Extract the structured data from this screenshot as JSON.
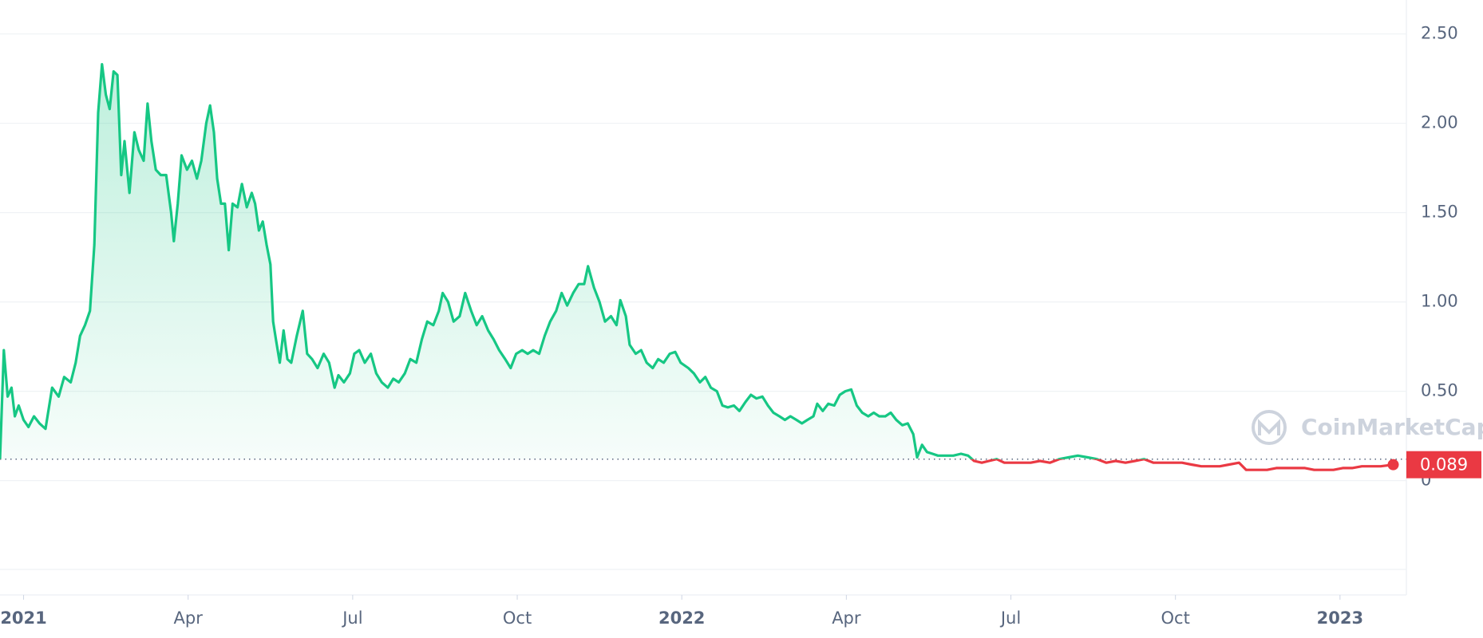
{
  "chart_data": {
    "type": "line",
    "xlim": [
      -0.43,
      25.21
    ],
    "xticks": [
      {
        "value": 0,
        "label": "2021"
      },
      {
        "value": 3,
        "label": "Apr"
      },
      {
        "value": 6,
        "label": "Jul"
      },
      {
        "value": 9,
        "label": "Oct"
      },
      {
        "value": 12,
        "label": "2022"
      },
      {
        "value": 15,
        "label": "Apr"
      },
      {
        "value": 18,
        "label": "Jul"
      },
      {
        "value": 21,
        "label": "Oct"
      },
      {
        "value": 24,
        "label": "2023"
      }
    ],
    "ylim": [
      -0.64,
      2.69
    ],
    "yticks": [
      0,
      {
        "value": 0.5,
        "label": "0.50"
      },
      {
        "value": 1,
        "label": "1.00"
      },
      {
        "value": 1.5,
        "label": "1.50"
      },
      {
        "value": 2,
        "label": "2.00"
      },
      {
        "value": 2.5,
        "label": "2.50"
      }
    ],
    "grid": true,
    "baseline": 0.12,
    "color_above": "#16c784",
    "color_below": "#ea3943",
    "current_price_label": "0.089",
    "watermark": "CoinMarketCap",
    "x": [
      -0.43,
      -0.36,
      -0.29,
      -0.22,
      -0.16,
      -0.09,
      0,
      0.09,
      0.19,
      0.29,
      0.4,
      0.52,
      0.64,
      0.74,
      0.86,
      0.95,
      1.03,
      1.12,
      1.21,
      1.29,
      1.36,
      1.43,
      1.5,
      1.57,
      1.64,
      1.71,
      1.78,
      1.84,
      1.93,
      2.02,
      2.1,
      2.19,
      2.26,
      2.33,
      2.41,
      2.5,
      2.6,
      2.69,
      2.74,
      2.81,
      2.88,
      2.98,
      3.07,
      3.16,
      3.24,
      3.33,
      3.4,
      3.47,
      3.53,
      3.6,
      3.67,
      3.74,
      3.81,
      3.9,
      3.98,
      4.07,
      4.16,
      4.22,
      4.29,
      4.36,
      4.43,
      4.5,
      4.55,
      4.6,
      4.67,
      4.74,
      4.81,
      4.88,
      4.98,
      5.09,
      5.17,
      5.26,
      5.36,
      5.47,
      5.57,
      5.67,
      5.74,
      5.84,
      5.95,
      6.03,
      6.12,
      6.22,
      6.33,
      6.43,
      6.53,
      6.64,
      6.74,
      6.84,
      6.95,
      7.05,
      7.16,
      7.26,
      7.36,
      7.47,
      7.57,
      7.64,
      7.74,
      7.84,
      7.95,
      8.05,
      8.16,
      8.26,
      8.36,
      8.47,
      8.57,
      8.67,
      8.78,
      8.88,
      8.98,
      9.09,
      9.19,
      9.29,
      9.4,
      9.5,
      9.6,
      9.71,
      9.81,
      9.91,
      10.02,
      10.12,
      10.22,
      10.29,
      10.4,
      10.5,
      10.6,
      10.71,
      10.81,
      10.88,
      10.98,
      11.05,
      11.16,
      11.26,
      11.36,
      11.47,
      11.57,
      11.67,
      11.78,
      11.88,
      11.98,
      12.12,
      12.22,
      12.33,
      12.43,
      12.53,
      12.64,
      12.74,
      12.84,
      12.95,
      13.05,
      13.16,
      13.26,
      13.36,
      13.47,
      13.57,
      13.67,
      13.78,
      13.88,
      13.98,
      14.09,
      14.19,
      14.29,
      14.4,
      14.47,
      14.57,
      14.67,
      14.78,
      14.88,
      14.98,
      15.09,
      15.19,
      15.29,
      15.4,
      15.5,
      15.6,
      15.71,
      15.81,
      15.91,
      16.02,
      16.12,
      16.22,
      16.29,
      16.38,
      16.47,
      16.57,
      16.67,
      16.81,
      16.95,
      17.09,
      17.22,
      17.33,
      17.47,
      17.6,
      17.74,
      17.88,
      18.02,
      18.19,
      18.36,
      18.53,
      18.71,
      18.88,
      19.05,
      19.22,
      19.4,
      19.57,
      19.74,
      19.91,
      20.09,
      20.26,
      20.43,
      20.6,
      20.78,
      20.95,
      21.12,
      21.29,
      21.47,
      21.64,
      21.81,
      21.98,
      22.16,
      22.29,
      22.47,
      22.67,
      22.84,
      23.02,
      23.19,
      23.36,
      23.53,
      23.71,
      23.88,
      24.05,
      24.22,
      24.4,
      24.57,
      24.74,
      24.97
    ],
    "values": [
      0.12,
      0.73,
      0.47,
      0.52,
      0.36,
      0.42,
      0.34,
      0.3,
      0.36,
      0.32,
      0.29,
      0.52,
      0.47,
      0.58,
      0.55,
      0.66,
      0.81,
      0.87,
      0.95,
      1.32,
      2.06,
      2.33,
      2.16,
      2.08,
      2.29,
      2.27,
      1.71,
      1.9,
      1.61,
      1.95,
      1.85,
      1.79,
      2.11,
      1.9,
      1.74,
      1.71,
      1.71,
      1.5,
      1.34,
      1.55,
      1.82,
      1.74,
      1.79,
      1.69,
      1.79,
      2.0,
      2.1,
      1.95,
      1.69,
      1.55,
      1.55,
      1.29,
      1.55,
      1.53,
      1.66,
      1.53,
      1.61,
      1.55,
      1.4,
      1.45,
      1.32,
      1.21,
      0.89,
      0.79,
      0.66,
      0.84,
      0.68,
      0.66,
      0.81,
      0.95,
      0.71,
      0.68,
      0.63,
      0.71,
      0.66,
      0.52,
      0.59,
      0.55,
      0.6,
      0.71,
      0.73,
      0.66,
      0.71,
      0.6,
      0.55,
      0.52,
      0.57,
      0.55,
      0.6,
      0.68,
      0.66,
      0.79,
      0.89,
      0.87,
      0.95,
      1.05,
      1.0,
      0.89,
      0.92,
      1.05,
      0.95,
      0.87,
      0.92,
      0.84,
      0.79,
      0.73,
      0.68,
      0.63,
      0.71,
      0.73,
      0.71,
      0.73,
      0.71,
      0.81,
      0.89,
      0.95,
      1.05,
      0.98,
      1.05,
      1.1,
      1.1,
      1.2,
      1.08,
      1.0,
      0.89,
      0.92,
      0.87,
      1.01,
      0.92,
      0.76,
      0.71,
      0.73,
      0.66,
      0.63,
      0.68,
      0.66,
      0.71,
      0.72,
      0.66,
      0.63,
      0.6,
      0.55,
      0.58,
      0.52,
      0.5,
      0.42,
      0.41,
      0.42,
      0.39,
      0.44,
      0.48,
      0.46,
      0.47,
      0.42,
      0.38,
      0.36,
      0.34,
      0.36,
      0.34,
      0.32,
      0.34,
      0.36,
      0.43,
      0.39,
      0.43,
      0.42,
      0.48,
      0.5,
      0.51,
      0.42,
      0.38,
      0.36,
      0.38,
      0.36,
      0.36,
      0.38,
      0.34,
      0.31,
      0.32,
      0.26,
      0.13,
      0.2,
      0.16,
      0.15,
      0.14,
      0.14,
      0.14,
      0.15,
      0.14,
      0.11,
      0.1,
      0.11,
      0.12,
      0.1,
      0.1,
      0.1,
      0.1,
      0.11,
      0.1,
      0.12,
      0.13,
      0.14,
      0.13,
      0.12,
      0.1,
      0.11,
      0.1,
      0.11,
      0.12,
      0.1,
      0.1,
      0.1,
      0.1,
      0.09,
      0.08,
      0.08,
      0.08,
      0.09,
      0.1,
      0.06,
      0.06,
      0.06,
      0.07,
      0.07,
      0.07,
      0.07,
      0.06,
      0.06,
      0.06,
      0.07,
      0.07,
      0.08,
      0.08,
      0.08,
      0.089
    ]
  }
}
